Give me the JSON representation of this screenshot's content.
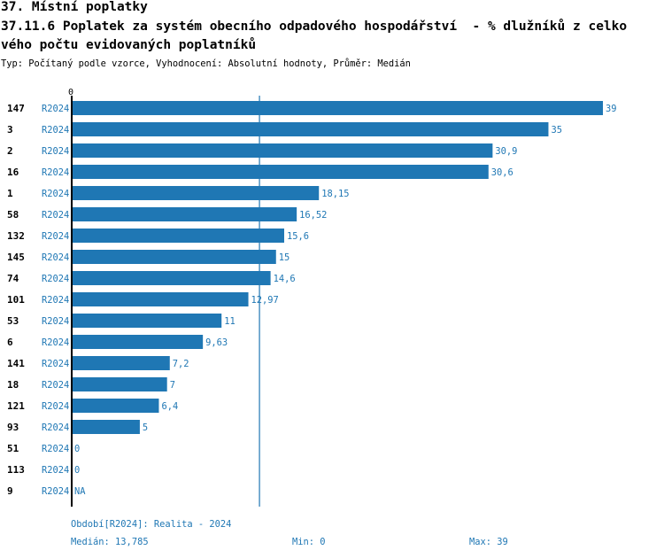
{
  "title_1": "37. Místní poplatky",
  "title_2": "37.11.6 Poplatek za systém obecního odpadového hospodářství  - % dlužníků z celko",
  "title_3": "vého počtu evidovaných poplatníků",
  "subtitle": "Typ: Počítaný podle vzorce, Vyhodnocení: Absolutní hodnoty, Průměr: Medián",
  "chart_data": {
    "type": "bar",
    "orientation": "horizontal",
    "axis_zero_label": "0",
    "xlim": [
      0,
      39
    ],
    "categories": [
      "147",
      "3",
      "2",
      "16",
      "1",
      "58",
      "132",
      "145",
      "74",
      "101",
      "53",
      "6",
      "141",
      "18",
      "121",
      "93",
      "51",
      "113",
      "9"
    ],
    "period": "R2024",
    "values": [
      39,
      35,
      30.9,
      30.6,
      18.15,
      16.52,
      15.6,
      15,
      14.6,
      12.97,
      11,
      9.63,
      7.2,
      7,
      6.4,
      5,
      0,
      0,
      null
    ],
    "value_labels": [
      "39",
      "35",
      "30,9",
      "30,6",
      "18,15",
      "16,52",
      "15,6",
      "15",
      "14,6",
      "12,97",
      "11",
      "9,63",
      "7,2",
      "7",
      "6,4",
      "5",
      "0",
      "0",
      "NA"
    ],
    "median": 13.785,
    "colors": {
      "bar": "#1f77b4",
      "text": "#1f77b4",
      "axis": "#000000"
    }
  },
  "footer": {
    "period_note": "Období[R2024]: Realita - 2024",
    "median": "Medián: 13,785",
    "min": "Min: 0",
    "max": "Max: 39"
  }
}
